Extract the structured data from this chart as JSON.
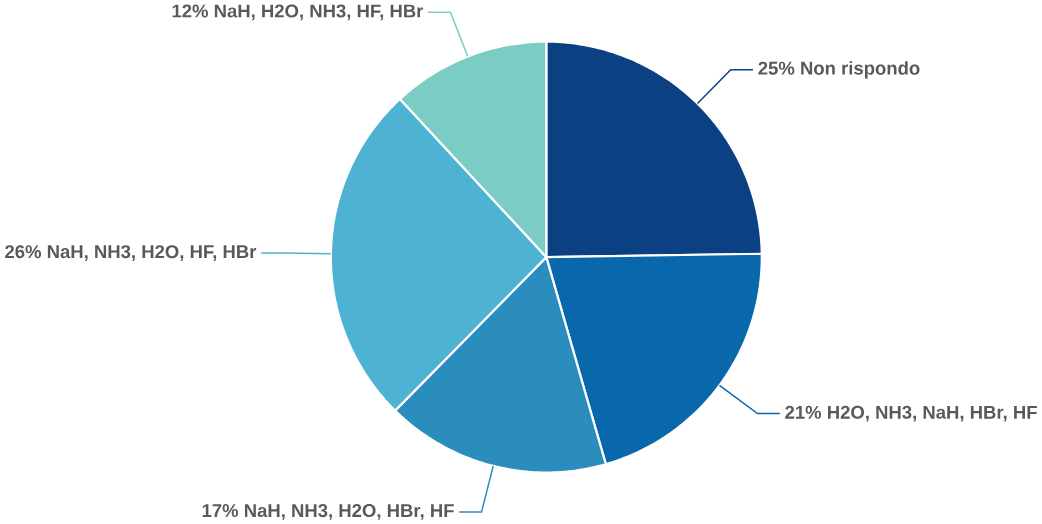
{
  "chart_data": {
    "type": "pie",
    "categories": [
      "Non rispondo",
      "H2O, NH3, NaH, HBr, HF",
      "NaH, NH3, H2O, HBr, HF",
      "NaH, NH3, H2O, HF, HBr",
      "NaH, H2O, NH3, HF, HBr"
    ],
    "values": [
      25,
      21,
      17,
      26,
      12
    ],
    "value_labels": [
      "25%",
      "21%",
      "17%",
      "26%",
      "12%"
    ],
    "colors": [
      "#0b4182",
      "#0868ab",
      "#2b8cbe",
      "#4eb3d3",
      "#7bccc4"
    ]
  }
}
